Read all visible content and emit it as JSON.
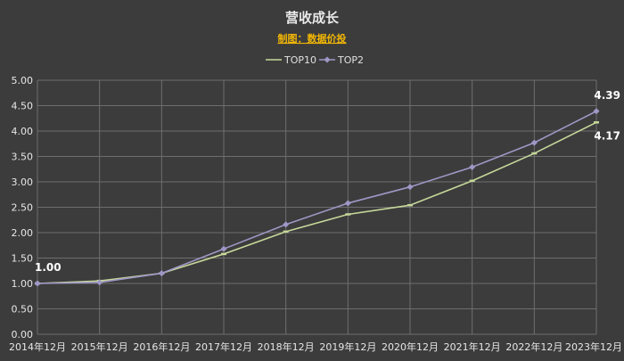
{
  "chart_data": {
    "type": "line",
    "title": "营收成长",
    "subtitle": "制图：数据价投",
    "categories": [
      "2014年12月",
      "2015年12月",
      "2016年12月",
      "2017年12月",
      "2018年12月",
      "2019年12月",
      "2020年12月",
      "2021年12月",
      "2022年12月",
      "2023年12月"
    ],
    "ylim": [
      0,
      5
    ],
    "yticks": [
      "0.00",
      "0.50",
      "1.00",
      "1.50",
      "2.00",
      "2.50",
      "3.00",
      "3.50",
      "4.00",
      "4.50",
      "5.00"
    ],
    "grid": true,
    "legend_position": "top-center",
    "series": [
      {
        "name": "TOP10",
        "color": "#c6d89a",
        "marker": "dash",
        "values": [
          1.0,
          1.05,
          1.2,
          1.58,
          2.02,
          2.36,
          2.54,
          3.02,
          3.56,
          4.17
        ]
      },
      {
        "name": "TOP2",
        "color": "#9f97c6",
        "marker": "diamond",
        "values": [
          1.0,
          1.02,
          1.2,
          1.68,
          2.16,
          2.58,
          2.9,
          3.29,
          3.77,
          4.39
        ]
      }
    ],
    "data_labels": [
      {
        "text": "1.00",
        "series": 0,
        "index": 0,
        "anchor": "above"
      },
      {
        "text": "4.39",
        "series": 1,
        "index": 9,
        "anchor": "above"
      },
      {
        "text": "4.17",
        "series": 0,
        "index": 9,
        "anchor": "below"
      }
    ]
  }
}
